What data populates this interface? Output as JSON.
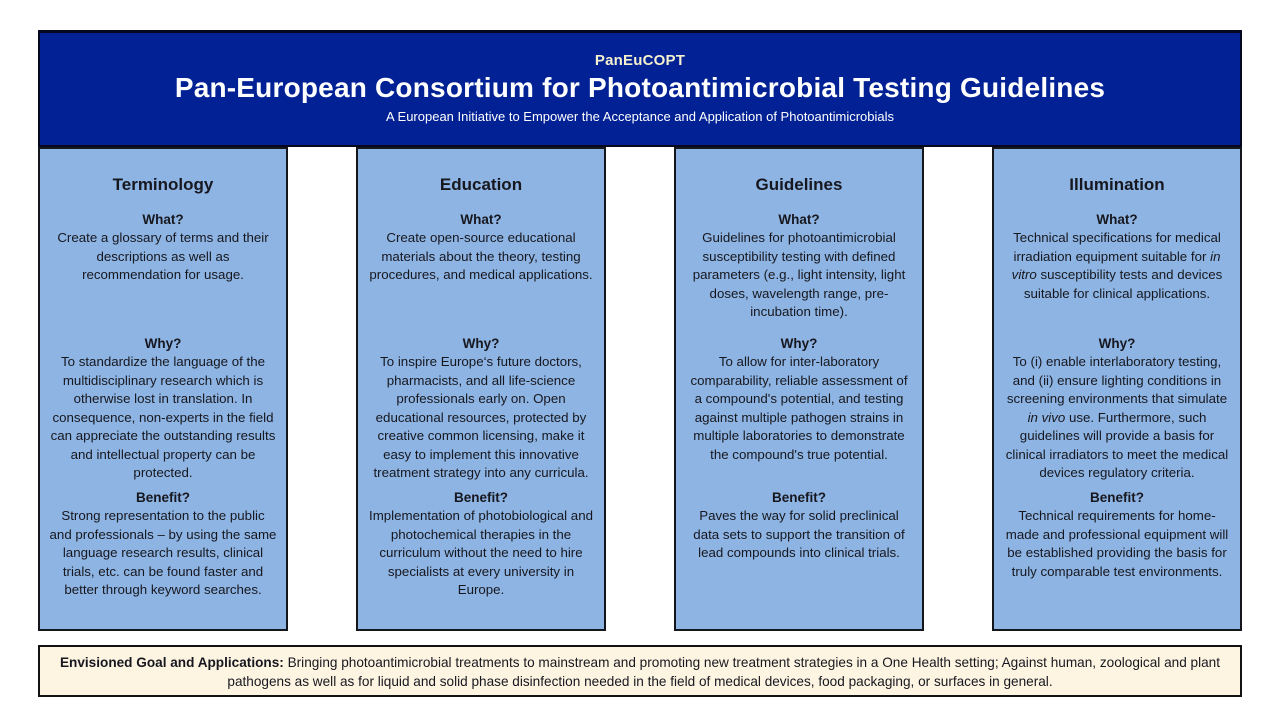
{
  "header": {
    "acronym": "PanEuCOPT",
    "title": "Pan-European Consortium for Photoantimicrobial Testing Guidelines",
    "subtitle": "A European Initiative to Empower the Acceptance and Application of Photoantimicrobials"
  },
  "columns": [
    {
      "title": "Terminology",
      "sections": [
        {
          "label": "What?",
          "text": "Create a glossary of terms and their descriptions as well as recommendation for usage."
        },
        {
          "label": "Why?",
          "text": "To standardize the language of the multidisciplinary research which is otherwise lost in translation. In consequence, non-experts in the field can appreciate the outstanding results and intellectual property can be protected."
        },
        {
          "label": "Benefit?",
          "text": "Strong representation to the public and professionals – by using the same language research results, clinical trials, etc. can be found faster and better through keyword searches."
        }
      ]
    },
    {
      "title": "Education",
      "sections": [
        {
          "label": "What?",
          "text": "Create open-source educational materials about the theory, testing procedures, and medical applications."
        },
        {
          "label": "Why?",
          "text": "To inspire Europe‘s future doctors, pharmacists, and all life-science professionals early on. Open educational resources, protected by creative common licensing, make it easy to implement this innovative treatment strategy into any curricula."
        },
        {
          "label": "Benefit?",
          "text": "Implementation of photobiological and photochemical therapies in the curriculum without the need to hire specialists at every university in Europe."
        }
      ]
    },
    {
      "title": "Guidelines",
      "sections": [
        {
          "label": "What?",
          "text": "Guidelines for photoantimicrobial susceptibility testing with defined parameters (e.g., light intensity, light doses, wavelength range, pre-incubation time)."
        },
        {
          "label": "Why?",
          "text": "To allow for inter-laboratory comparability, reliable assessment of a compound's potential, and testing against multiple pathogen strains in multiple laboratories to demonstrate the compound's true potential."
        },
        {
          "label": "Benefit?",
          "text": "Paves the way for solid preclinical data sets to support the transition of lead compounds into clinical trials."
        }
      ]
    },
    {
      "title": "Illumination",
      "sections": [
        {
          "label": "What?",
          "text": "Technical specifications for medical irradiation equipment suitable for *in vitro* susceptibility tests and devices suitable for clinical applications."
        },
        {
          "label": "Why?",
          "text": "To (i) enable interlaboratory testing, and (ii) ensure lighting conditions in screening environments that simulate *in vivo* use. Furthermore, such guidelines will provide a basis for clinical irradiators to meet the medical devices regulatory criteria."
        },
        {
          "label": "Benefit?",
          "text": "Technical requirements for home-made and professional equipment will be established providing the basis for truly comparable test environments."
        }
      ]
    }
  ],
  "footer": {
    "label": "Envisioned Goal and Applications:",
    "text": " Bringing photoantimicrobial treatments to mainstream and promoting new treatment strategies in a One Health setting; Against human, zoological and plant pathogens as well as for liquid and solid phase disinfection needed in the field of medical devices, food packaging, or surfaces in general."
  },
  "colors": {
    "page_bg": "#FFFFFF",
    "header_bg": "#012195",
    "header_border": "#05081E",
    "header_text": "#FFFFFF",
    "acronym_text": "#F5F0CE",
    "column_bg": "#8DB4E2",
    "column_border": "#15151C",
    "body_text": "#17171F",
    "footer_bg": "#FDF5E2",
    "footer_border": "#121212"
  }
}
